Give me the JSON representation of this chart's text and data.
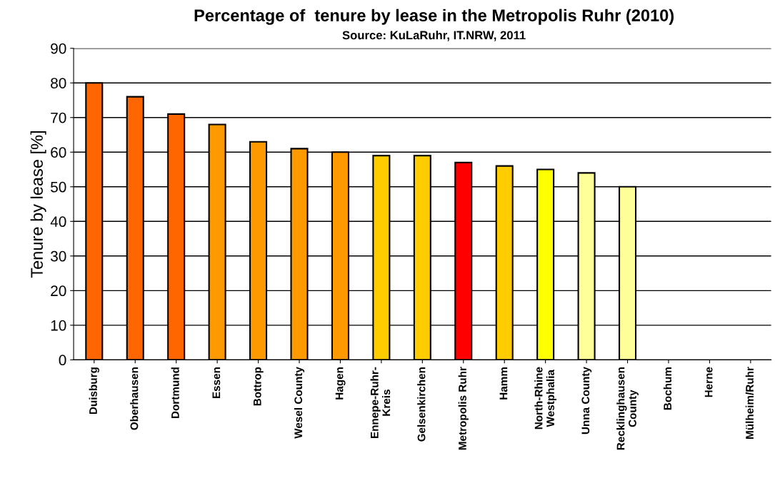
{
  "chart_data": {
    "type": "bar",
    "title": "Percentage of  tenure by lease in the Metropolis Ruhr (2010)",
    "subtitle": "Source: KuLaRuhr, IT.NRW, 2011",
    "ylabel": "Tenure by lease [%]",
    "categories": [
      "Duisburg",
      "Oberhausen",
      "Dortmund",
      "Essen",
      "Bottrop",
      "Wesel County",
      "Hagen",
      "Ennepe-Ruhr-\nKreis",
      "Gelsenkirchen",
      "Metropolis Ruhr",
      "Hamm",
      "North-Rhine\nWestphalia",
      "Unna County",
      "Recklinghausen\nCounty",
      "Bochum",
      "Herne",
      "Mülheim/Ruhr"
    ],
    "values": [
      80,
      76,
      71,
      68,
      63,
      61,
      60,
      59,
      59,
      57,
      56,
      55,
      54,
      50,
      null,
      null,
      null
    ],
    "colors": [
      "#ff6600",
      "#ff6600",
      "#ff6600",
      "#ff9900",
      "#ff9900",
      "#ff9900",
      "#ff9900",
      "#ffcc00",
      "#ffcc00",
      "#ff0000",
      "#ffcc00",
      "#ffff00",
      "#ffff99",
      "#ffff99",
      "#ffff99",
      "#ffff99",
      "#ffff99"
    ],
    "ylim": [
      0,
      90
    ],
    "yticks": [
      0,
      10,
      20,
      30,
      40,
      50,
      60,
      70,
      80,
      90
    ],
    "grid": "y"
  }
}
